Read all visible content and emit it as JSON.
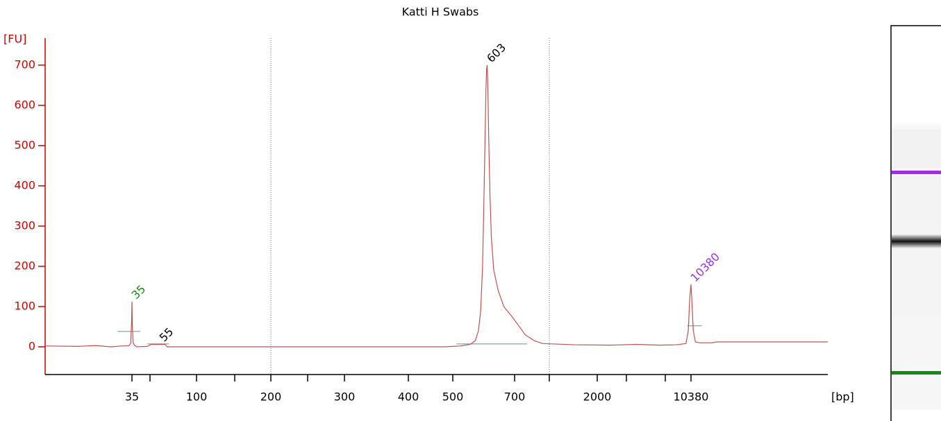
{
  "chart_data": {
    "type": "line",
    "title": "Katti H Swabs",
    "y_label": "[FU]",
    "x_label": "[bp]",
    "axis_color": "#cc0000",
    "color": "#c0504d",
    "x_scale": "log",
    "ylim": [
      -69,
      767
    ],
    "yticks": [
      0,
      100,
      200,
      300,
      400,
      500,
      600,
      700
    ],
    "xlim": [
      9,
      110000
    ],
    "xticks": [
      35,
      null,
      100,
      null,
      200,
      null,
      300,
      400,
      500,
      700,
      null,
      2000,
      null,
      null,
      10380
    ],
    "x": [
      9,
      15,
      20,
      25,
      30,
      32,
      33.5,
      34.3,
      34.8,
      35,
      35.2,
      35.7,
      36.5,
      38,
      45,
      48,
      52,
      55,
      60,
      62,
      70,
      100,
      200,
      300,
      400,
      480,
      520,
      550,
      565,
      575,
      582,
      588,
      592,
      596,
      599,
      601,
      603,
      605,
      608,
      612,
      617,
      625,
      640,
      660,
      690,
      730,
      800,
      900,
      1000,
      1500,
      2500,
      4000,
      6000,
      8000,
      9500,
      9900,
      10150,
      10380,
      10550,
      10800,
      11200,
      12000,
      15000,
      16000,
      30000,
      60000,
      110000
    ],
    "values": [
      2,
      1,
      3,
      0,
      2,
      2,
      3,
      8,
      60,
      112,
      55,
      10,
      3,
      0,
      1,
      6,
      6,
      6,
      6,
      0,
      0,
      0,
      0,
      0,
      0,
      0,
      2,
      6,
      15,
      40,
      90,
      200,
      350,
      520,
      640,
      690,
      700,
      650,
      520,
      380,
      270,
      190,
      140,
      100,
      75,
      55,
      30,
      15,
      8,
      5,
      4,
      6,
      4,
      5,
      8,
      40,
      120,
      155,
      110,
      40,
      12,
      10,
      10,
      12,
      12,
      12,
      12
    ],
    "peaks": [
      {
        "label": "35",
        "x": 35,
        "y": 112,
        "color": "#1a8a1a"
      },
      {
        "label": "55",
        "x": 55,
        "y": 6,
        "color": "#000000"
      },
      {
        "label": "603",
        "x": 603,
        "y": 700,
        "color": "#000000"
      },
      {
        "label": "10380",
        "x": 10380,
        "y": 155,
        "color": "#9b30e0"
      }
    ]
  }
}
